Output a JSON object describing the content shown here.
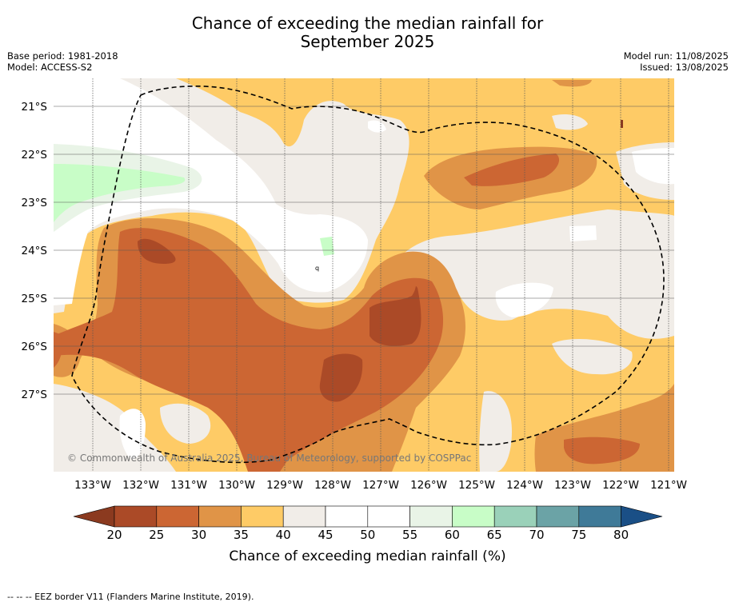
{
  "title_line1": "Chance of exceeding the median rainfall for",
  "title_line2": "September 2025",
  "base_period": "Base period: 1981-2018",
  "model": "Model: ACCESS-S2",
  "model_run": "Model run: 11/08/2025",
  "issued": "Issued: 13/08/2025",
  "copyright": "© Commonwealth of Australia 2025, Bureau of Meteorology, supported by COSPPac",
  "lon_labels": [
    "133°W",
    "132°W",
    "131°W",
    "130°W",
    "129°W",
    "128°W",
    "127°W",
    "126°W",
    "125°W",
    "124°W",
    "123°W",
    "122°W",
    "121°W"
  ],
  "lat_labels": [
    "21°S",
    "22°S",
    "23°S",
    "24°S",
    "25°S",
    "26°S",
    "27°S"
  ],
  "colorbar": {
    "label": "Chance of exceeding median rainfall (%)",
    "ticks": [
      "20",
      "25",
      "30",
      "35",
      "40",
      "45",
      "50",
      "55",
      "60",
      "65",
      "70",
      "75",
      "80"
    ],
    "colors": {
      "below20": "#8b3a1f",
      "20-25": "#ab4a27",
      "25-30": "#cc6633",
      "30-35": "#e09447",
      "35-40": "#fecb66",
      "40-45": "#f1ede8",
      "45-50": "#ffffff",
      "50-55": "#ffffff",
      "55-60": "#e9f4e7",
      "60-65": "#c8fdc7",
      "65-70": "#9ad1b9",
      "70-75": "#6ba3a6",
      "75-80": "#3f7a98",
      "above80": "#1a4f86"
    }
  },
  "footnote": "--  --  -- EEZ border V11 (Flanders Marine Institute, 2019)."
}
